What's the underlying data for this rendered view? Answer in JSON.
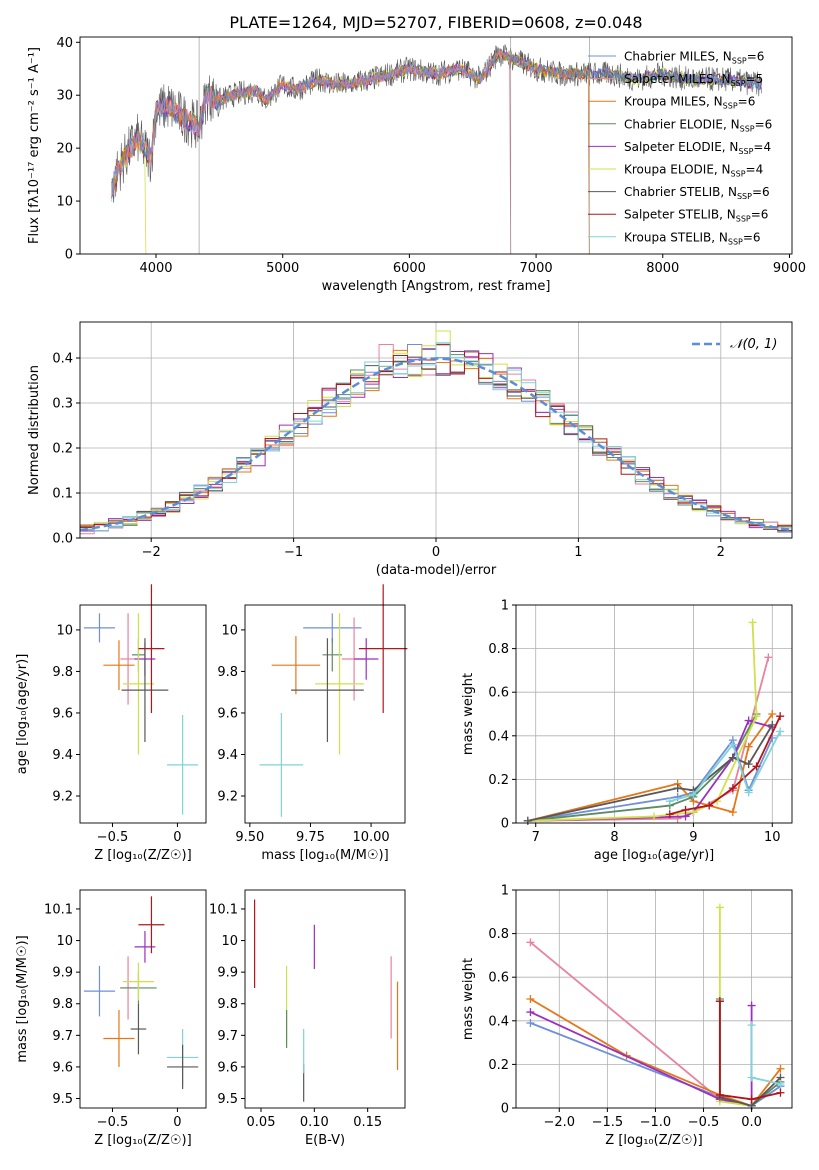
{
  "figure_title": "PLATE=1264, MJD=52707, FIBERID=0608, z=0.048",
  "colors": {
    "Chabrier MILES": "#6f8fdc",
    "Salpeter MILES": "#e9829e",
    "Kroupa MILES": "#e57718",
    "Chabrier ELODIE": "#5e8a64",
    "Salpeter ELODIE": "#9a2fc0",
    "Kroupa ELODIE": "#cfe14a",
    "Chabrier STELIB": "#585858",
    "Salpeter STELIB": "#b2161c",
    "Kroupa STELIB": "#7fd3d9",
    "normal": "#5b8ed6"
  },
  "chart_data": [
    {
      "id": "spectrum",
      "type": "line",
      "title": "PLATE=1264, MJD=52707, FIBERID=0608, z=0.048",
      "xlabel": "wavelength [Angstrom, rest frame]",
      "ylabel_main": "Flux [f",
      "ylabel_units": "λ10⁻¹⁷ erg cm⁻² s⁻¹ A⁻¹]",
      "xlim": [
        3400,
        9020
      ],
      "ylim": [
        0,
        41
      ],
      "xticks": [
        4000,
        5000,
        6000,
        7000,
        8000,
        9000
      ],
      "yticks": [
        0,
        10,
        20,
        30,
        40
      ],
      "legend_position": "right",
      "legend": [
        {
          "label": "Chabrier MILES, N",
          "sub": "SSP",
          "suffix": "=6"
        },
        {
          "label": "Salpeter MILES, N",
          "sub": "SSP",
          "suffix": "=5"
        },
        {
          "label": "Kroupa MILES, N",
          "sub": "SSP",
          "suffix": "=6"
        },
        {
          "label": "Chabrier ELODIE, N",
          "sub": "SSP",
          "suffix": "=6"
        },
        {
          "label": "Salpeter ELODIE, N",
          "sub": "SSP",
          "suffix": "=4"
        },
        {
          "label": "Kroupa ELODIE, N",
          "sub": "SSP",
          "suffix": "=4"
        },
        {
          "label": "Chabrier STELIB, N",
          "sub": "SSP",
          "suffix": "=6"
        },
        {
          "label": "Salpeter STELIB, N",
          "sub": "SSP",
          "suffix": "=6"
        },
        {
          "label": "Kroupa STELIB, N",
          "sub": "SSP",
          "suffix": "=6"
        }
      ],
      "continuum": {
        "x": [
          3650,
          3700,
          3800,
          3850,
          3900,
          3960,
          4000,
          4100,
          4200,
          4340,
          4400,
          4500,
          4600,
          4800,
          4861,
          5000,
          5100,
          5200,
          5300,
          5400,
          5500,
          5700,
          6000,
          6200,
          6400,
          6563,
          6700,
          6800,
          7000,
          7200,
          7400,
          7600,
          7800,
          8000,
          8200,
          8500,
          8780
        ],
        "y": [
          12,
          16,
          20,
          22,
          20,
          18,
          27,
          28,
          26,
          24,
          30,
          29,
          30,
          31,
          29,
          32,
          31,
          32,
          33,
          32,
          32,
          33,
          35,
          34,
          35,
          33,
          38,
          37,
          35,
          34,
          34,
          34,
          33,
          34,
          33,
          33,
          32
        ]
      },
      "dropouts": [
        {
          "series": "Kroupa ELODIE",
          "x": 3920
        },
        {
          "series": "Salpeter MILES",
          "x": 6800
        },
        {
          "series": "Kroupa MILES",
          "x": 7420
        }
      ]
    },
    {
      "id": "residual-histogram",
      "type": "histogram",
      "xlabel": "(data-model)/error",
      "ylabel": "Normed distribution",
      "xlim": [
        -2.5,
        2.5
      ],
      "ylim": [
        0,
        0.48
      ],
      "xticks": [
        -2,
        -1,
        0,
        1,
        2
      ],
      "yticks": [
        0.0,
        0.1,
        0.2,
        0.3,
        0.4
      ],
      "grid": true,
      "legend_position": "top-right",
      "normal_label": "𝒩(0, 1)",
      "bin_width": 0.1
    },
    {
      "id": "age-vs-Z",
      "type": "errorbar",
      "xlabel": "Z [log₁₀(Z/Z☉)]",
      "ylabel": "age  [log₁₀(age/yr)]",
      "xlim": [
        -0.75,
        0.22
      ],
      "ylim": [
        9.07,
        10.12
      ],
      "xticks": [
        -0.5,
        0.0
      ],
      "yticks": [
        9.2,
        9.4,
        9.6,
        9.8,
        10.0
      ],
      "grid": false,
      "points": [
        {
          "series": "Chabrier MILES",
          "x": -0.6,
          "y": 10.01,
          "xerr": 0.12,
          "yerr": 0.07
        },
        {
          "series": "Salpeter MILES",
          "x": -0.38,
          "y": 9.86,
          "xerr": 0.06,
          "yerr": 0.22
        },
        {
          "series": "Kroupa MILES",
          "x": -0.45,
          "y": 9.83,
          "xerr": 0.12,
          "yerr": 0.12
        },
        {
          "series": "Chabrier ELODIE",
          "x": -0.3,
          "y": 9.88,
          "xerr": 0.05,
          "yerr": 0.08
        },
        {
          "series": "Salpeter ELODIE",
          "x": -0.25,
          "y": 9.86,
          "xerr": 0.08,
          "yerr": 0.08
        },
        {
          "series": "Kroupa ELODIE",
          "x": -0.3,
          "y": 9.74,
          "xerr": 0.12,
          "yerr": 0.34
        },
        {
          "series": "Chabrier STELIB",
          "x": -0.25,
          "y": 9.71,
          "xerr": 0.18,
          "yerr": 0.25
        },
        {
          "series": "Salpeter STELIB",
          "x": -0.2,
          "y": 9.91,
          "xerr": 0.1,
          "yerr": 0.31
        },
        {
          "series": "Kroupa STELIB",
          "x": 0.04,
          "y": 9.35,
          "xerr": 0.12,
          "yerr": 0.24
        }
      ]
    },
    {
      "id": "age-vs-mass",
      "type": "errorbar",
      "xlabel": "mass [log₁₀(M/M☉)]",
      "ylabel": "",
      "xlim": [
        9.48,
        10.14
      ],
      "ylim": [
        9.07,
        10.12
      ],
      "xticks": [
        9.5,
        9.75,
        10.0
      ],
      "xticklabels": [
        "9.50",
        "9.75",
        "10.00"
      ],
      "yticks": [
        9.2,
        9.4,
        9.6,
        9.8,
        10.0
      ],
      "grid": false,
      "points": [
        {
          "series": "Chabrier MILES",
          "x": 9.84,
          "y": 10.01,
          "xerr": 0.12,
          "yerr": 0.07
        },
        {
          "series": "Salpeter MILES",
          "x": 9.93,
          "y": 9.86,
          "xerr": 0.05,
          "yerr": 0.2
        },
        {
          "series": "Kroupa MILES",
          "x": 9.69,
          "y": 9.83,
          "xerr": 0.1,
          "yerr": 0.14
        },
        {
          "series": "Chabrier ELODIE",
          "x": 9.84,
          "y": 9.88,
          "xerr": 0.04,
          "yerr": 0.08
        },
        {
          "series": "Salpeter ELODIE",
          "x": 9.98,
          "y": 9.86,
          "xerr": 0.05,
          "yerr": 0.1
        },
        {
          "series": "Kroupa ELODIE",
          "x": 9.87,
          "y": 9.74,
          "xerr": 0.1,
          "yerr": 0.34
        },
        {
          "series": "Chabrier STELIB",
          "x": 9.82,
          "y": 9.71,
          "xerr": 0.15,
          "yerr": 0.25
        },
        {
          "series": "Salpeter STELIB",
          "x": 10.05,
          "y": 9.91,
          "xerr": 0.1,
          "yerr": 0.31
        },
        {
          "series": "Kroupa STELIB",
          "x": 9.63,
          "y": 9.35,
          "xerr": 0.09,
          "yerr": 0.25
        }
      ]
    },
    {
      "id": "massweight-vs-age",
      "type": "line",
      "xlabel": "age  [log₁₀(age/yr)]",
      "ylabel": "mass weight",
      "xlim": [
        6.75,
        10.25
      ],
      "ylim": [
        0,
        1.0
      ],
      "xticks": [
        7,
        8,
        9,
        10
      ],
      "yticks": [
        0.0,
        0.2,
        0.4,
        0.6,
        0.8,
        1.0
      ],
      "grid": true,
      "series": [
        {
          "name": "Chabrier MILES",
          "x": [
            6.9,
            8.8,
            9.0,
            9.5,
            9.7,
            10.0
          ],
          "y": [
            0.01,
            0.12,
            0.14,
            0.38,
            0.15,
            0.39
          ]
        },
        {
          "name": "Salpeter MILES",
          "x": [
            6.9,
            8.8,
            9.0,
            9.5,
            9.95
          ],
          "y": [
            0.01,
            0.02,
            0.05,
            0.15,
            0.76
          ]
        },
        {
          "name": "Kroupa MILES",
          "x": [
            6.9,
            8.8,
            9.0,
            9.5,
            9.7,
            10.0
          ],
          "y": [
            0.01,
            0.18,
            0.1,
            0.05,
            0.35,
            0.5
          ]
        },
        {
          "name": "Chabrier ELODIE",
          "x": [
            6.9,
            8.7,
            9.0,
            9.5,
            9.8
          ],
          "y": [
            0.01,
            0.08,
            0.12,
            0.3,
            0.5
          ]
        },
        {
          "name": "Salpeter ELODIE",
          "x": [
            6.9,
            8.9,
            9.0,
            9.5,
            9.7,
            10.0
          ],
          "y": [
            0.01,
            0.03,
            0.05,
            0.3,
            0.47,
            0.44
          ]
        },
        {
          "name": "Kroupa ELODIE",
          "x": [
            6.9,
            8.5,
            9.0,
            9.3,
            9.8,
            9.75
          ],
          "y": [
            0.01,
            0.03,
            0.05,
            0.1,
            0.49,
            0.92
          ]
        },
        {
          "name": "Chabrier STELIB",
          "x": [
            6.9,
            8.8,
            9.0,
            9.5,
            9.7,
            10.0
          ],
          "y": [
            0.01,
            0.16,
            0.15,
            0.3,
            0.27,
            0.45
          ]
        },
        {
          "name": "Salpeter STELIB",
          "x": [
            8.7,
            8.9,
            9.2,
            9.5,
            9.8,
            10.1
          ],
          "y": [
            0.04,
            0.06,
            0.08,
            0.16,
            0.26,
            0.49
          ]
        },
        {
          "name": "Kroupa STELIB",
          "x": [
            8.7,
            9.0,
            9.5,
            9.7,
            10.1
          ],
          "y": [
            0.1,
            0.13,
            0.36,
            0.14,
            0.42
          ]
        }
      ]
    },
    {
      "id": "mass-vs-Z",
      "type": "errorbar",
      "xlabel": "Z [log₁₀(Z/Z☉)]",
      "ylabel": "mass [log₁₀(M/M☉)]",
      "xlim": [
        -0.75,
        0.22
      ],
      "ylim": [
        9.47,
        10.16
      ],
      "xticks": [
        -0.5,
        0.0
      ],
      "yticks": [
        9.5,
        9.6,
        9.7,
        9.8,
        9.9,
        10.0,
        10.1
      ],
      "grid": false,
      "points": [
        {
          "series": "Chabrier MILES",
          "x": -0.6,
          "y": 9.84,
          "xerr": 0.12,
          "yerr": 0.08
        },
        {
          "series": "Salpeter MILES",
          "x": -0.38,
          "y": 9.85,
          "xerr": 0.06,
          "yerr": 0.1
        },
        {
          "series": "Kroupa MILES",
          "x": -0.45,
          "y": 9.69,
          "xerr": 0.12,
          "yerr": 0.09
        },
        {
          "series": "Chabrier ELODIE",
          "x": -0.3,
          "y": 9.85,
          "xerr": 0.14,
          "yerr": 0.05
        },
        {
          "series": "Salpeter ELODIE",
          "x": -0.25,
          "y": 9.98,
          "xerr": 0.08,
          "yerr": 0.05
        },
        {
          "series": "Kroupa ELODIE",
          "x": -0.3,
          "y": 9.87,
          "xerr": 0.12,
          "yerr": 0.06
        },
        {
          "series": "Chabrier STELIB",
          "x": -0.3,
          "y": 9.72,
          "xerr": 0.06,
          "yerr": 0.08
        },
        {
          "series": "Salpeter STELIB",
          "x": -0.2,
          "y": 10.05,
          "xerr": 0.1,
          "yerr": 0.09
        },
        {
          "series": "Kroupa STELIB",
          "x": 0.04,
          "y": 9.63,
          "xerr": 0.12,
          "yerr": 0.09
        },
        {
          "series": "Chabrier STELIB",
          "x": 0.04,
          "y": 9.6,
          "xerr": 0.12,
          "yerr": 0.07
        }
      ]
    },
    {
      "id": "mass-vs-EBV",
      "type": "errorbar",
      "xlabel": "E(B-V)",
      "ylabel": "",
      "xlim": [
        0.035,
        0.185
      ],
      "ylim": [
        9.47,
        10.16
      ],
      "xticks": [
        0.05,
        0.1,
        0.15
      ],
      "xticklabels": [
        "0.05",
        "0.10",
        "0.15"
      ],
      "yticks": [
        9.5,
        9.6,
        9.7,
        9.8,
        9.9,
        10.0,
        10.1
      ],
      "grid": false,
      "points": [
        {
          "series": "Salpeter STELIB",
          "x": 0.044,
          "y": 9.99,
          "yerr": 0.14
        },
        {
          "series": "Kroupa ELODIE",
          "x": 0.074,
          "y": 9.8,
          "yerr": 0.12
        },
        {
          "series": "Chabrier ELODIE",
          "x": 0.074,
          "y": 9.72,
          "yerr": 0.06
        },
        {
          "series": "Chabrier STELIB",
          "x": 0.09,
          "y": 9.55,
          "yerr": 0.06
        },
        {
          "series": "Kroupa STELIB",
          "x": 0.09,
          "y": 9.65,
          "yerr": 0.07
        },
        {
          "series": "Salpeter ELODIE",
          "x": 0.1,
          "y": 9.98,
          "yerr": 0.07
        },
        {
          "series": "Salpeter MILES",
          "x": 0.172,
          "y": 9.82,
          "yerr": 0.13
        },
        {
          "series": "Kroupa MILES",
          "x": 0.178,
          "y": 9.73,
          "yerr": 0.14
        }
      ]
    },
    {
      "id": "massweight-vs-Z",
      "type": "line",
      "xlabel": "Z [log₁₀(Z/Z☉)]",
      "ylabel": "mass weight",
      "xlim": [
        -2.45,
        0.42
      ],
      "ylim": [
        0,
        1.0
      ],
      "xticks": [
        -2.0,
        -1.5,
        -1.0,
        -0.5,
        0.0
      ],
      "xticklabels": [
        "−2.0",
        "−1.5",
        "−1.0",
        "−0.5",
        "0.0"
      ],
      "yticks": [
        0.0,
        0.2,
        0.4,
        0.6,
        0.8,
        1.0
      ],
      "grid": true,
      "series": [
        {
          "name": "Chabrier MILES",
          "x": [
            -2.3,
            -0.33,
            0.0,
            0.3
          ],
          "y": [
            0.39,
            0.05,
            0.01,
            0.1
          ]
        },
        {
          "name": "Salpeter MILES",
          "x": [
            -2.3,
            -0.33,
            0.0
          ],
          "y": [
            0.76,
            0.04,
            0.01
          ]
        },
        {
          "name": "Kroupa MILES",
          "x": [
            -2.3,
            -1.3,
            -0.33,
            0.0,
            0.3
          ],
          "y": [
            0.5,
            0.24,
            0.06,
            0.01,
            0.18
          ]
        },
        {
          "name": "Chabrier ELODIE",
          "x": [
            -0.33,
            -0.33,
            0.0,
            0.3
          ],
          "y": [
            0.5,
            0.04,
            0.01,
            0.12
          ]
        },
        {
          "name": "Salpeter ELODIE",
          "x": [
            -2.3,
            -0.33,
            0.0,
            0.0
          ],
          "y": [
            0.44,
            0.04,
            0.01,
            0.47
          ]
        },
        {
          "name": "Kroupa ELODIE",
          "x": [
            -0.33,
            -0.33,
            0.0
          ],
          "y": [
            0.92,
            0.03,
            0.01
          ]
        },
        {
          "name": "Chabrier STELIB",
          "x": [
            -0.33,
            -0.33,
            0.0,
            0.3
          ],
          "y": [
            0.49,
            0.05,
            0.01,
            0.14
          ]
        },
        {
          "name": "Salpeter STELIB",
          "x": [
            -0.33,
            -0.33,
            0.0,
            0.3
          ],
          "y": [
            0.49,
            0.06,
            0.04,
            0.07
          ]
        },
        {
          "name": "Kroupa STELIB",
          "x": [
            0.0,
            0.0,
            0.3
          ],
          "y": [
            0.38,
            0.14,
            0.11
          ]
        }
      ]
    }
  ]
}
